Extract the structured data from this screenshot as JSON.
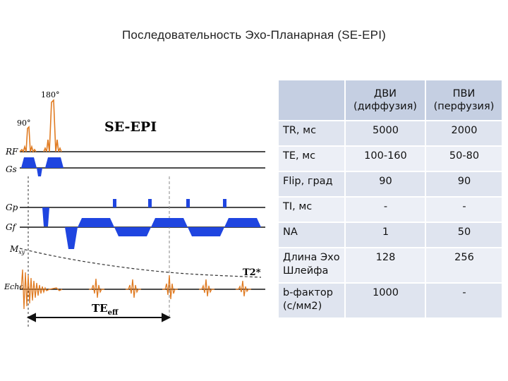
{
  "page": {
    "title": "Последовательность Эхо-Планарная (SE-EPI)"
  },
  "diagram": {
    "sequence_name": "SE-EPI",
    "pulse_180": "180°",
    "pulse_90": "90°",
    "lines": {
      "rf": "RF",
      "gs": "Gs",
      "gp": "Gp",
      "gf": "Gf",
      "mxy": "M",
      "mxy_sub": "xy",
      "echo": "Echo"
    },
    "t2star": "T2*",
    "te_eff": "TE",
    "te_eff_sub": "eff",
    "colors": {
      "rf": "#e07b22",
      "gradient": "#1f45e0",
      "line": "#111111"
    }
  },
  "table": {
    "headers": {
      "col2_line1": "ДВИ",
      "col2_line2": "(диффузия)",
      "col3_line1": "ПВИ",
      "col3_line2": "(перфузия)"
    },
    "rows": [
      {
        "param": "TR, мс",
        "dwi": "5000",
        "pwi": "2000"
      },
      {
        "param": "TE, мс",
        "dwi": "100-160",
        "pwi": "50-80"
      },
      {
        "param": "Flip, град",
        "dwi": "90",
        "pwi": "90"
      },
      {
        "param": "TI, мс",
        "dwi": "-",
        "pwi": "-"
      },
      {
        "param": "NA",
        "dwi": "1",
        "pwi": "50"
      },
      {
        "param": "Длина Эхо Шлейфа",
        "dwi": "128",
        "pwi": "256"
      },
      {
        "param": "b-фактор (с/мм2)",
        "dwi": "1000",
        "pwi": "-"
      }
    ]
  }
}
